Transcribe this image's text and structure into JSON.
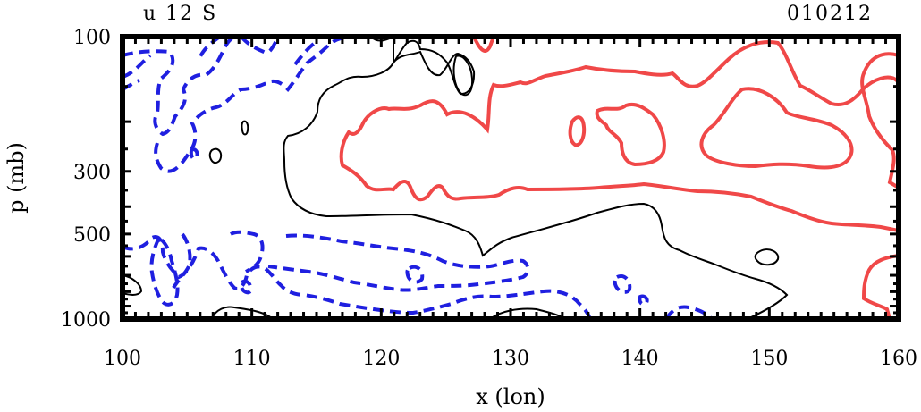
{
  "chart_data": {
    "type": "contour",
    "title_left": "u 12 S",
    "title_right": "010212",
    "xlabel": "x (lon)",
    "ylabel": "p (mb)",
    "xlim": [
      100,
      160
    ],
    "x_ticks": [
      100,
      110,
      120,
      130,
      140,
      150,
      160
    ],
    "y_ticks": [
      100,
      300,
      500,
      1000
    ],
    "ylim": [
      1000,
      100
    ],
    "y_scale": "log",
    "grid": false,
    "legend": "none",
    "colors": {
      "positive": "#f04848",
      "zero": "#000000",
      "negative": "#1f1fe0"
    }
  }
}
